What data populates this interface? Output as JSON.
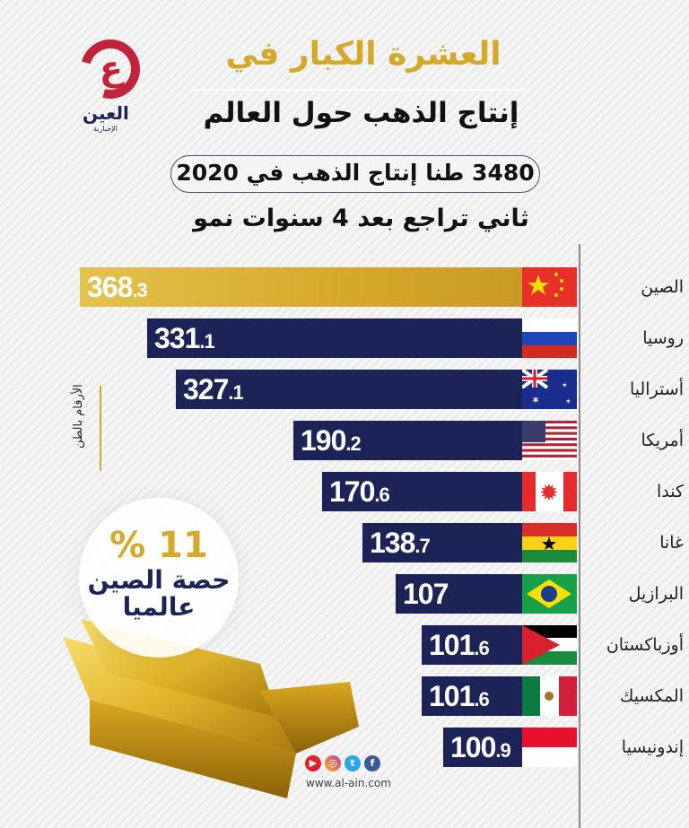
{
  "logo": {
    "glyph": "ع",
    "name": "العين",
    "sub": "الإخبارية"
  },
  "header": {
    "title_line1": "العشرة الكبار في",
    "title_line2": "إنتاج الذهب حول العالم",
    "pill": "3480 طنا إنتاج الذهب في 2020",
    "subtitle": "ثاني تراجع بعد 4 سنوات نمو"
  },
  "units_note": "الأرقام بالطن",
  "highlight": {
    "percent": "% 11",
    "label_line1": "حصة الصين",
    "label_line2": "عالميا"
  },
  "footer": {
    "url": "www.al-ain.com",
    "social_icons": [
      "youtube-icon",
      "instagram-icon",
      "twitter-icon",
      "facebook-icon"
    ]
  },
  "colors": {
    "gold": "#d4a92a",
    "navy": "#1c2457",
    "logo_red": "#c2223a"
  },
  "chart_data": {
    "type": "bar",
    "orientation": "horizontal",
    "title": "العشرة الكبار في إنتاج الذهب حول العالم",
    "subtitle": "3480 طنا إنتاج الذهب في 2020 — ثاني تراجع بعد 4 سنوات نمو",
    "unit": "الأرقام بالطن",
    "categories": [
      "الصين",
      "روسيا",
      "أستراليا",
      "أمريكا",
      "كندا",
      "غانا",
      "البرازيل",
      "أوزباكستان",
      "المكسيك",
      "إندونيسيا"
    ],
    "values": [
      368.3,
      331.1,
      327.1,
      190.2,
      170.6,
      138.7,
      107,
      101.6,
      101.6,
      100.9
    ],
    "value_labels": [
      [
        "368",
        ".3"
      ],
      [
        "331",
        ".1"
      ],
      [
        "327",
        ".1"
      ],
      [
        "190",
        ".2"
      ],
      [
        "170",
        ".6"
      ],
      [
        "138",
        ".7"
      ],
      [
        "107",
        ""
      ],
      [
        "101",
        ".6"
      ],
      [
        "101",
        ".6"
      ],
      [
        "100",
        ".9"
      ]
    ],
    "highlight_index": 0,
    "grid": false,
    "legend": null
  }
}
